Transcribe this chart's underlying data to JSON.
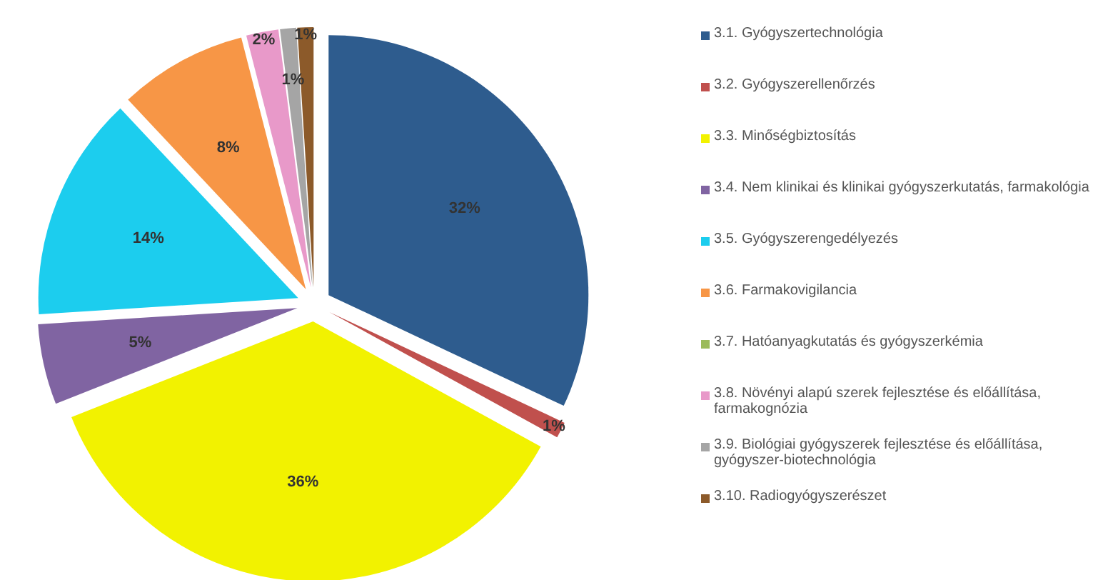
{
  "chart_data": {
    "type": "pie",
    "categories": [
      "3.1. Gyógyszertechnológia",
      "3.2. Gyógyszerellenőrzés",
      "3.3. Minőségbiztosítás",
      "3.4. Nem klinikai és klinikai gyógyszerkutatás, farmakológia",
      "3.5. Gyógyszerengedélyezés",
      "3.6. Farmakovigilancia",
      "3.7. Hatóanyagkutatás és gyógyszerkémia",
      "3.8. Növényi alapú szerek fejlesztése és előállítása, farmakognózia",
      "3.9. Biológiai gyógyszerek fejlesztése és előállítása, gyógyszer-biotechnológia",
      "3.10. Radiogyógyszerészet"
    ],
    "values": [
      32,
      1,
      36,
      5,
      14,
      8,
      0,
      2,
      1,
      1
    ],
    "value_labels": [
      "32%",
      "1%",
      "36%",
      "5%",
      "14%",
      "8%",
      null,
      "2%",
      "1%",
      "1%"
    ],
    "colors": [
      "#2e5c8e",
      "#c0504d",
      "#f2f200",
      "#8064a2",
      "#1ccdee",
      "#f79646",
      "#9bbb59",
      "#e899c9",
      "#a5a5a5",
      "#8c5a2a"
    ],
    "legend": "right"
  }
}
